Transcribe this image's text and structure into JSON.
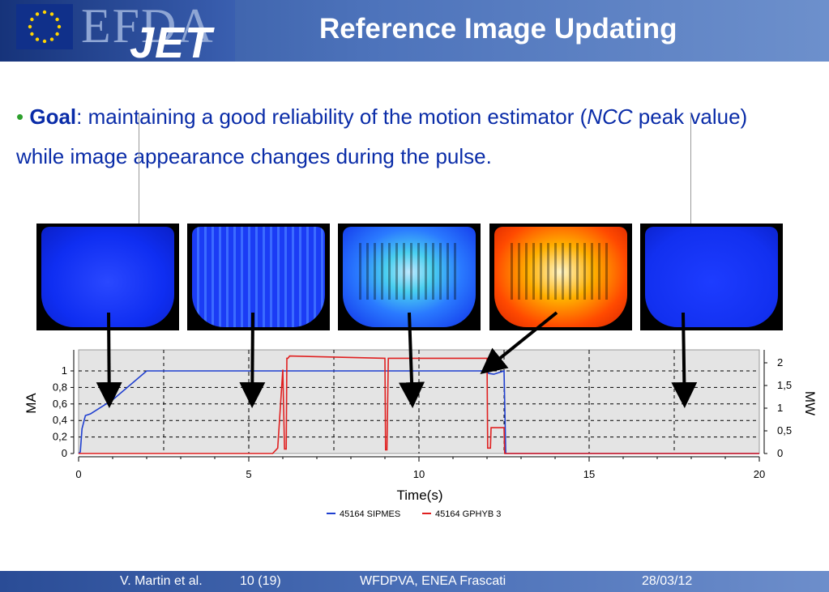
{
  "header": {
    "logo_efda": "EFDA",
    "logo_jet": "JET",
    "title": "Reference Image Updating"
  },
  "goal": {
    "bullet": "•",
    "label": "Goal",
    "text_before": ": maintaining a good reliability of the motion estimator (",
    "text_italic": "NCC",
    "text_after": " peak value) while image appearance changes during the pulse."
  },
  "thumbnails": [
    {
      "name": "frame-1",
      "palette": "low-intensity blue"
    },
    {
      "name": "frame-2",
      "palette": "blue"
    },
    {
      "name": "frame-3",
      "palette": "blue-cyan"
    },
    {
      "name": "frame-4",
      "palette": "orange-yellow"
    },
    {
      "name": "frame-5",
      "palette": "dark blue"
    }
  ],
  "chart_data": {
    "type": "line",
    "title": "",
    "xlabel": "Time(s)",
    "ylabel": "MA",
    "y2label": "MW",
    "xlim": [
      0,
      20
    ],
    "ylim": [
      0,
      1.2
    ],
    "y2lim": [
      0,
      2.25
    ],
    "x_ticks": [
      0,
      5,
      10,
      15,
      20
    ],
    "y_ticks": [
      "0",
      "0,2",
      "0,4",
      "0,6",
      "0,8",
      "1"
    ],
    "y2_ticks": [
      "0",
      "0,5",
      "1",
      "1,5",
      "2"
    ],
    "grid": true,
    "legend_position": "bottom",
    "arrow_times": [
      0.9,
      5.1,
      9.8,
      12.0,
      17.8
    ],
    "series": [
      {
        "name": "45164 SIPMES",
        "color": "#1f3fd0",
        "axis": "left",
        "x": [
          0,
          0.05,
          0.1,
          0.2,
          0.35,
          1.0,
          2.0,
          12.0,
          12.05,
          12.2,
          12.5,
          12.55,
          20.0
        ],
        "y": [
          0,
          0.02,
          0.3,
          0.46,
          0.48,
          0.65,
          1.0,
          1.0,
          0.97,
          0.96,
          1.0,
          0,
          0
        ]
      },
      {
        "name": "45164 GPHYB 3",
        "color": "#e02020",
        "axis": "right",
        "x": [
          0,
          5.7,
          5.85,
          6.0,
          6.05,
          6.1,
          6.12,
          6.15,
          6.2,
          9.0,
          9.02,
          9.06,
          9.1,
          12.0,
          12.02,
          12.1,
          12.12,
          12.5,
          12.52,
          20.0
        ],
        "y": [
          0,
          0,
          0.12,
          1.85,
          0.1,
          0.1,
          2.1,
          2.1,
          2.15,
          2.1,
          0.08,
          0.08,
          2.1,
          2.1,
          0.12,
          0.12,
          0.57,
          0.57,
          0,
          0
        ]
      }
    ]
  },
  "footer": {
    "author": "V. Martin et al.",
    "page": "10 (19)",
    "event": "WFDPVA, ENEA Frascati",
    "date": "28/03/12"
  }
}
